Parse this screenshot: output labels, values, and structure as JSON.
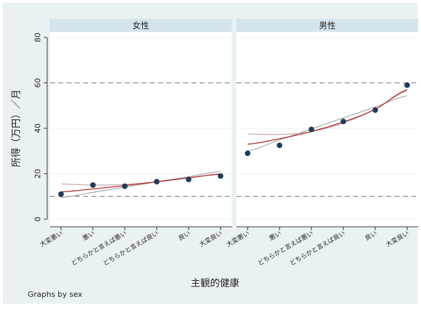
{
  "chart_data": {
    "type": "scatter",
    "ylabel": "所得（万円）／月",
    "xlabel": "主観的健康",
    "note": "Graphs by sex",
    "categories": [
      "大変悪い",
      "悪い",
      "どちらかと言えば悪い",
      "どちらかと言えば良い",
      "良い",
      "大変良い"
    ],
    "ylim": [
      0,
      80
    ],
    "yticks": [
      0,
      20,
      40,
      60,
      80
    ],
    "reference_lines": [
      10,
      60
    ],
    "panels": [
      {
        "title": "女性",
        "points": [
          11,
          15,
          14.5,
          16.5,
          17.5,
          19
        ],
        "fit_linear": [
          9.5,
          11.8,
          14.1,
          16.4,
          18.7,
          21
        ],
        "fit_quadratic": [
          15.5,
          15,
          15.3,
          16.4,
          18.1,
          20
        ],
        "fit_red": [
          12,
          13.3,
          14.8,
          16.5,
          18.2,
          19.8
        ]
      },
      {
        "title": "男性",
        "points": [
          29,
          32.5,
          39.5,
          43,
          48,
          59
        ],
        "fit_linear": [
          30,
          34.9,
          39.7,
          44.6,
          49.4,
          54.3
        ],
        "fit_quadratic": [
          37.5,
          37.3,
          38.5,
          42.3,
          48.4,
          56.5
        ],
        "fit_red": [
          33,
          35.4,
          38.6,
          42.8,
          48.4,
          57
        ]
      }
    ]
  }
}
